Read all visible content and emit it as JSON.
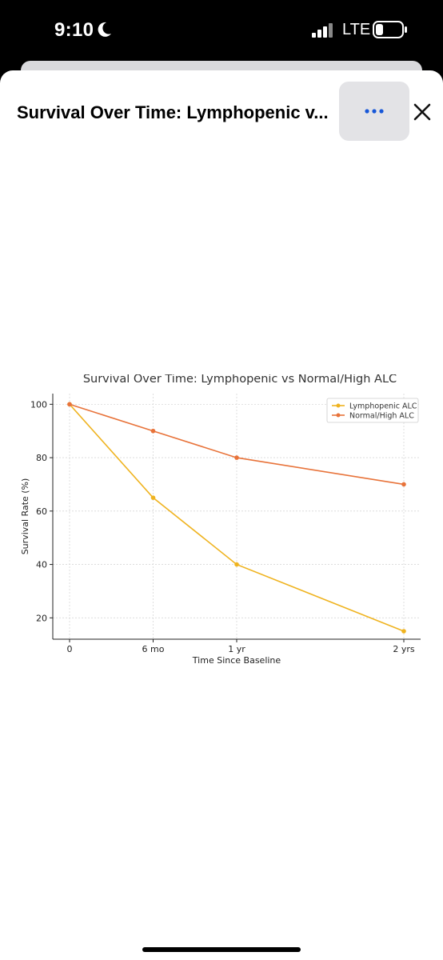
{
  "status_bar": {
    "time": "9:10",
    "network": "LTE"
  },
  "sheet": {
    "title": "Survival Over Time: Lymphopenic v...",
    "more_icon": "ellipsis-icon",
    "close_icon": "close-icon"
  },
  "chart_data": {
    "type": "line",
    "title": "Survival Over Time: Lymphopenic vs Normal/High ALC",
    "xlabel": "Time Since Baseline",
    "ylabel": "Survival Rate (%)",
    "categories": [
      "0",
      "6 mo",
      "1 yr",
      "2 yrs"
    ],
    "x": [
      0,
      6,
      12,
      24
    ],
    "ylim": [
      12,
      104
    ],
    "yticks": [
      "20",
      "40",
      "60",
      "80",
      "100"
    ],
    "grid": true,
    "legend_position": "top-right",
    "series": [
      {
        "name": "Lymphopenic ALC",
        "values": [
          100,
          65,
          40,
          15
        ],
        "color": "#efb31f"
      },
      {
        "name": "Normal/High ALC",
        "values": [
          100,
          90,
          80,
          70
        ],
        "color": "#e8733a"
      }
    ]
  }
}
